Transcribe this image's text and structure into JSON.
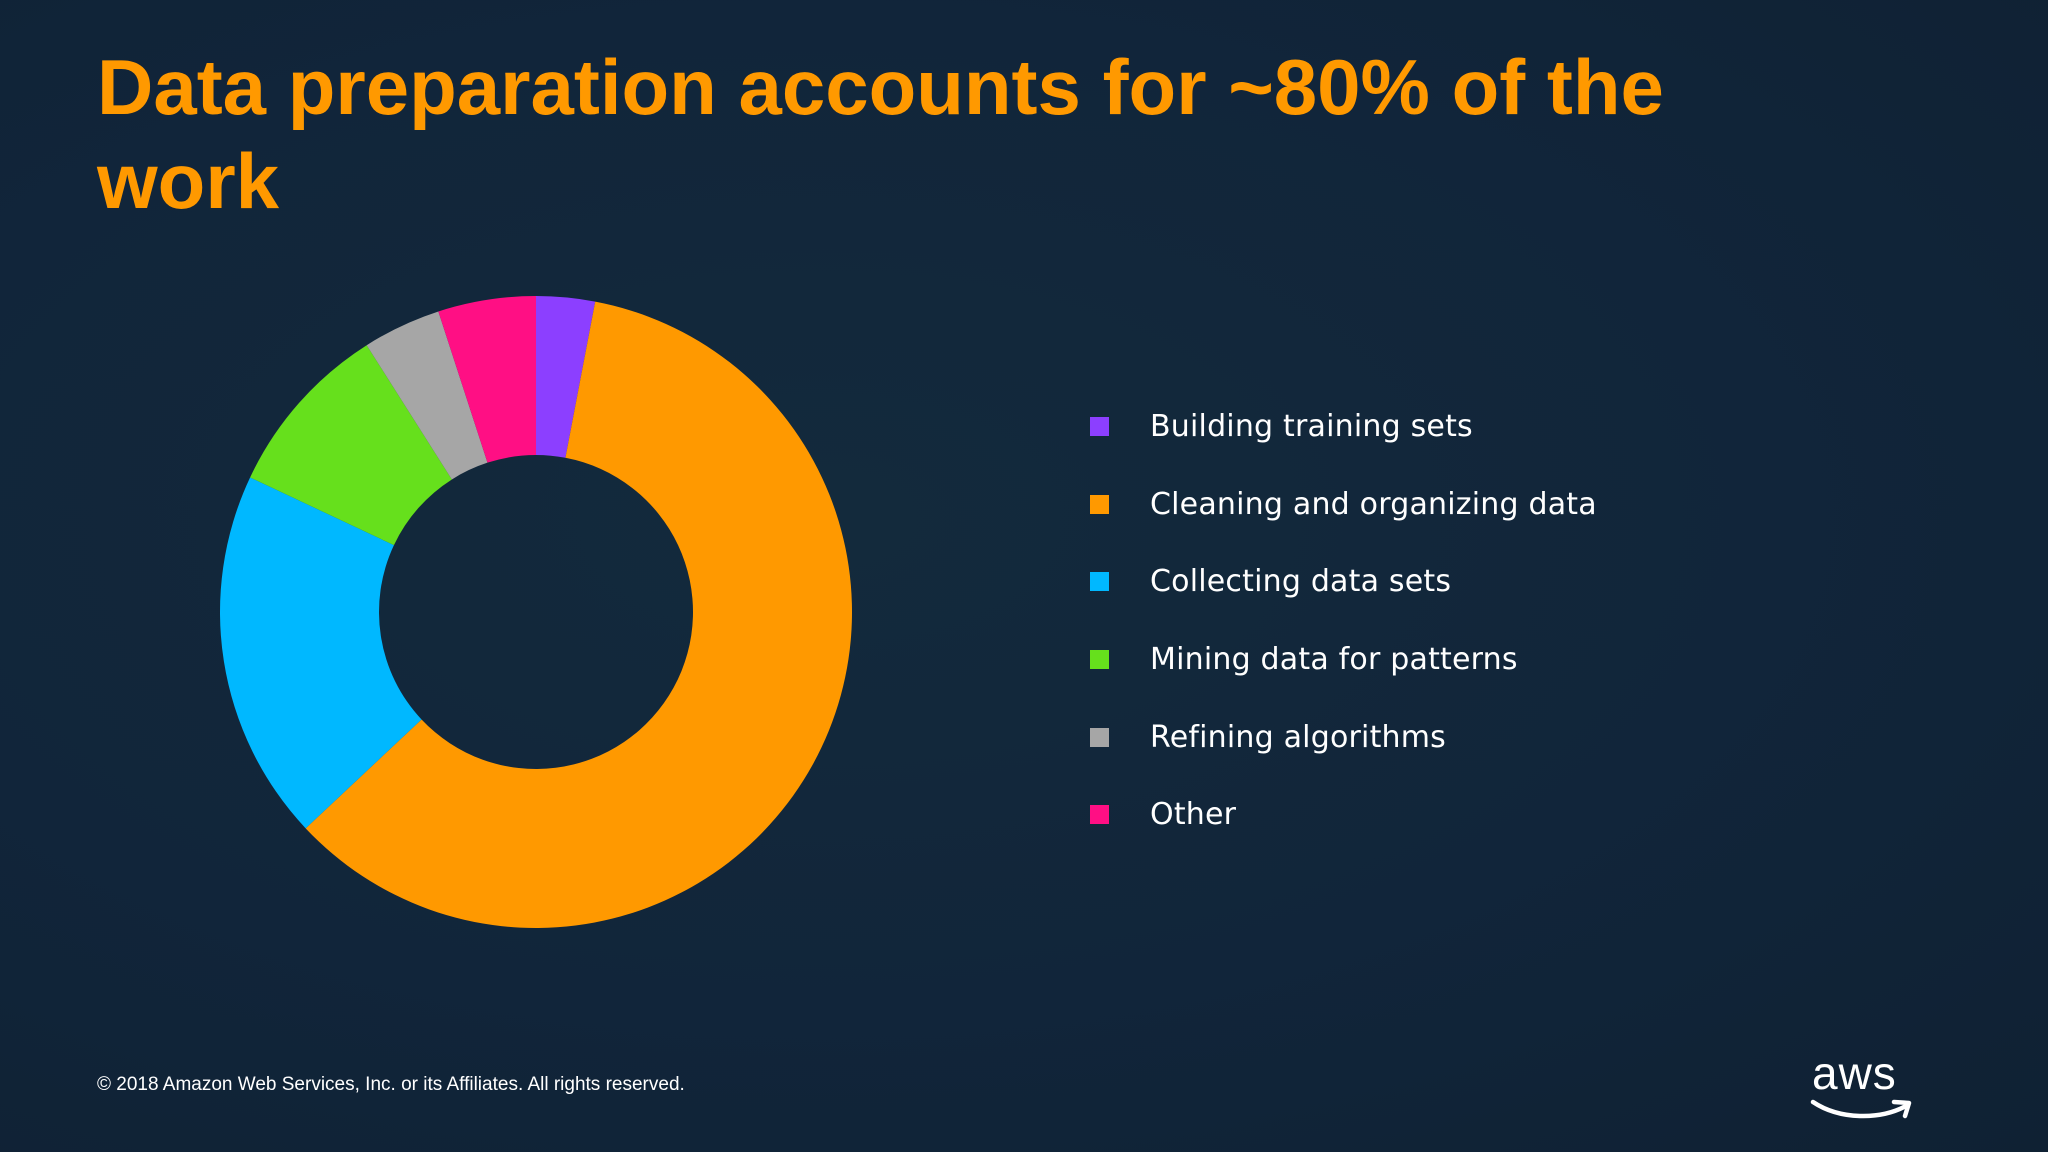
{
  "slide": {
    "title": "Data preparation accounts for ~80% of the work",
    "footer": "© 2018 Amazon Web Services, Inc. or its Affiliates. All rights reserved.",
    "logo_text": "aws",
    "background": "#112233",
    "accent": "#ff9900"
  },
  "chart_data": {
    "type": "pie",
    "donut": true,
    "title": "",
    "legend_placement": "right",
    "categories": [
      "Building training sets",
      "Cleaning and organizing data",
      "Collecting data sets",
      "Mining data for patterns",
      "Refining algorithms",
      "Other"
    ],
    "values": [
      3,
      60,
      19,
      9,
      4,
      5
    ],
    "colors": [
      "#8c3fff",
      "#ff9900",
      "#00b8ff",
      "#66e01c",
      "#a6a6a6",
      "#ff0f84"
    ]
  }
}
